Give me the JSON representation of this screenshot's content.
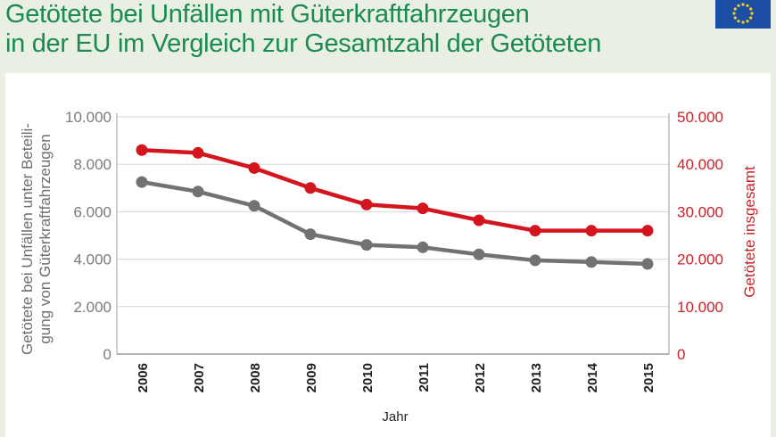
{
  "header": {
    "title_line1": "Getötete bei Unfällen mit Güterkraftfahrzeugen",
    "title_line2": "in der EU im Vergleich zur Gesamtzahl der Getöteten",
    "flag_icon": "eu-flag-icon"
  },
  "colors": {
    "title": "#1a8a52",
    "background": "#e9f0e3",
    "series_trucks": "#727272",
    "series_total": "#d3151e",
    "grid": "#d6d6d6"
  },
  "chart_data": {
    "type": "line",
    "title": "Getötete bei Unfällen mit Güterkraftfahrzeugen in der EU im Vergleich zur Gesamtzahl der Getöteten",
    "categories": [
      "2006",
      "2007",
      "2008",
      "2009",
      "2010",
      "2011",
      "2012",
      "2013",
      "2014",
      "2015"
    ],
    "xlabel": "Jahr",
    "ylabel_left_line1": "Getötete bei Unfällen unter Beteili-",
    "ylabel_left_line2": "gung von Güterkraftfahrzeugen",
    "ylabel_right": "Getötete insgesamt",
    "ylim_left": [
      0,
      10000
    ],
    "ylim_right": [
      0,
      50000
    ],
    "yticks_left": [
      "0",
      "2.000",
      "4.000",
      "6.000",
      "8.000",
      "10.000"
    ],
    "yticks_right": [
      "0",
      "10.000",
      "20.000",
      "30.000",
      "40.000",
      "50.000"
    ],
    "grid": true,
    "series": [
      {
        "axis": "left",
        "color": "#727272",
        "values": [
          7250,
          6850,
          6250,
          5050,
          4600,
          4500,
          4200,
          3950,
          3880,
          3800
        ]
      },
      {
        "axis": "right",
        "color": "#d3151e",
        "values": [
          43000,
          42400,
          39200,
          35000,
          31500,
          30700,
          28200,
          26000,
          26000,
          26000
        ]
      }
    ]
  }
}
